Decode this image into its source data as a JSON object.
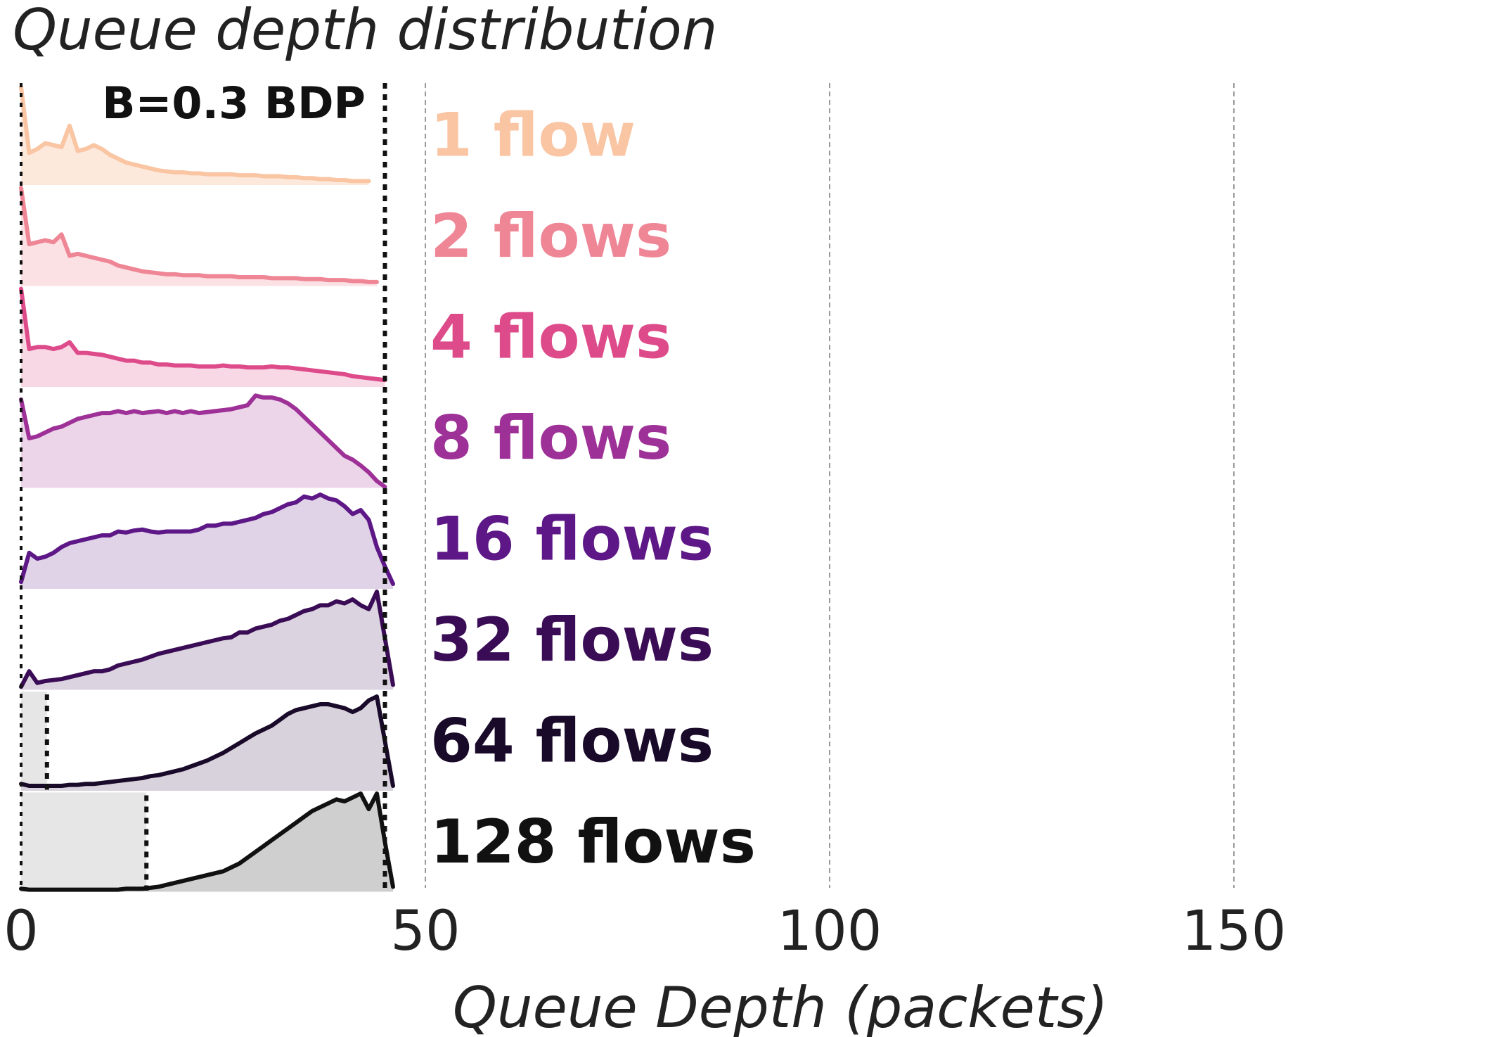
{
  "chart_data": {
    "type": "area",
    "title": "Queue depth distribution",
    "xlabel": "Queue Depth (packets)",
    "ylabel": "",
    "xlim": [
      0,
      185
    ],
    "xticks": [
      "0",
      "50",
      "100",
      "150"
    ],
    "xtick_values": [
      0,
      50,
      100,
      150
    ],
    "grid": "vertical-dashed",
    "annotation": "B=0.3 BDP",
    "buffer_limit": 45,
    "series": [
      {
        "name": "1 flow",
        "color": "#f9c5a3",
        "fill": "#fde9dc",
        "shaded_until": null,
        "x": [
          0,
          1,
          2,
          3,
          4,
          5,
          6,
          7,
          8,
          9,
          10,
          11,
          12,
          13,
          14,
          15,
          16,
          17,
          18,
          19,
          20,
          21,
          22,
          23,
          24,
          25,
          26,
          27,
          28,
          29,
          30,
          31,
          32,
          33,
          34,
          35,
          36,
          37,
          38,
          39,
          40,
          41,
          42,
          43
        ],
        "y": [
          1.0,
          0.32,
          0.36,
          0.42,
          0.4,
          0.38,
          0.6,
          0.34,
          0.36,
          0.4,
          0.36,
          0.3,
          0.26,
          0.22,
          0.2,
          0.18,
          0.16,
          0.14,
          0.13,
          0.12,
          0.12,
          0.11,
          0.11,
          0.1,
          0.1,
          0.1,
          0.1,
          0.09,
          0.09,
          0.09,
          0.08,
          0.08,
          0.08,
          0.07,
          0.07,
          0.06,
          0.06,
          0.05,
          0.05,
          0.04,
          0.04,
          0.03,
          0.03,
          0.03
        ]
      },
      {
        "name": "2 flows",
        "color": "#ef8696",
        "fill": "#fce1e4",
        "shaded_until": null,
        "x": [
          0,
          1,
          2,
          3,
          4,
          5,
          6,
          7,
          8,
          9,
          10,
          11,
          12,
          13,
          14,
          15,
          16,
          17,
          18,
          19,
          20,
          21,
          22,
          23,
          24,
          25,
          26,
          27,
          28,
          29,
          30,
          31,
          32,
          33,
          34,
          35,
          36,
          37,
          38,
          39,
          40,
          41,
          42,
          43,
          44
        ],
        "y": [
          1.0,
          0.42,
          0.44,
          0.46,
          0.44,
          0.52,
          0.3,
          0.32,
          0.3,
          0.28,
          0.26,
          0.24,
          0.2,
          0.18,
          0.16,
          0.14,
          0.13,
          0.12,
          0.11,
          0.11,
          0.1,
          0.1,
          0.1,
          0.09,
          0.09,
          0.09,
          0.09,
          0.08,
          0.08,
          0.08,
          0.08,
          0.07,
          0.07,
          0.07,
          0.07,
          0.06,
          0.06,
          0.06,
          0.05,
          0.05,
          0.05,
          0.04,
          0.04,
          0.03,
          0.03
        ]
      },
      {
        "name": "4 flows",
        "color": "#de4b8b",
        "fill": "#f9d8e6",
        "shaded_until": null,
        "x": [
          0,
          1,
          2,
          3,
          4,
          5,
          6,
          7,
          8,
          9,
          10,
          11,
          12,
          13,
          14,
          15,
          16,
          17,
          18,
          19,
          20,
          21,
          22,
          23,
          24,
          25,
          26,
          27,
          28,
          29,
          30,
          31,
          32,
          33,
          34,
          35,
          36,
          37,
          38,
          39,
          40,
          41,
          42,
          43,
          44,
          45
        ],
        "y": [
          1.0,
          0.38,
          0.4,
          0.4,
          0.38,
          0.4,
          0.45,
          0.34,
          0.34,
          0.33,
          0.32,
          0.3,
          0.28,
          0.26,
          0.26,
          0.24,
          0.24,
          0.22,
          0.22,
          0.21,
          0.21,
          0.21,
          0.2,
          0.2,
          0.2,
          0.21,
          0.2,
          0.2,
          0.19,
          0.19,
          0.19,
          0.2,
          0.19,
          0.19,
          0.18,
          0.17,
          0.16,
          0.15,
          0.14,
          0.13,
          0.12,
          0.1,
          0.09,
          0.08,
          0.07,
          0.06
        ]
      },
      {
        "name": "8 flows",
        "color": "#9e3197",
        "fill": "#ecd5e9",
        "shaded_until": null,
        "x": [
          0,
          1,
          2,
          3,
          4,
          5,
          6,
          7,
          8,
          9,
          10,
          11,
          12,
          13,
          14,
          15,
          16,
          17,
          18,
          19,
          20,
          21,
          22,
          23,
          24,
          25,
          26,
          27,
          28,
          29,
          30,
          31,
          32,
          33,
          34,
          35,
          36,
          37,
          38,
          39,
          40,
          41,
          42,
          43,
          44,
          45
        ],
        "y": [
          0.9,
          0.5,
          0.52,
          0.56,
          0.6,
          0.62,
          0.66,
          0.7,
          0.72,
          0.74,
          0.76,
          0.76,
          0.78,
          0.76,
          0.78,
          0.76,
          0.77,
          0.78,
          0.76,
          0.78,
          0.76,
          0.78,
          0.76,
          0.77,
          0.78,
          0.79,
          0.8,
          0.82,
          0.84,
          0.94,
          0.92,
          0.92,
          0.9,
          0.86,
          0.8,
          0.72,
          0.64,
          0.56,
          0.48,
          0.4,
          0.32,
          0.28,
          0.22,
          0.15,
          0.06,
          0.0
        ]
      },
      {
        "name": "16 flows",
        "color": "#5d1786",
        "fill": "#e0d3e8",
        "shaded_until": null,
        "x": [
          0,
          1,
          2,
          3,
          4,
          5,
          6,
          7,
          8,
          9,
          10,
          11,
          12,
          13,
          14,
          15,
          16,
          17,
          18,
          19,
          20,
          21,
          22,
          23,
          24,
          25,
          26,
          27,
          28,
          29,
          30,
          31,
          32,
          33,
          34,
          35,
          36,
          37,
          38,
          39,
          40,
          41,
          42,
          43,
          44,
          45,
          46
        ],
        "y": [
          0.06,
          0.36,
          0.3,
          0.32,
          0.36,
          0.42,
          0.46,
          0.48,
          0.5,
          0.52,
          0.54,
          0.54,
          0.58,
          0.57,
          0.59,
          0.6,
          0.58,
          0.57,
          0.58,
          0.58,
          0.58,
          0.58,
          0.6,
          0.64,
          0.64,
          0.66,
          0.66,
          0.68,
          0.7,
          0.72,
          0.76,
          0.78,
          0.82,
          0.86,
          0.88,
          0.94,
          0.92,
          0.96,
          0.92,
          0.9,
          0.84,
          0.76,
          0.8,
          0.7,
          0.42,
          0.22,
          0.04
        ]
      },
      {
        "name": "32 flows",
        "color": "#3a0c55",
        "fill": "#dbd3e0",
        "shaded_until": null,
        "x": [
          0,
          1,
          2,
          3,
          4,
          5,
          6,
          7,
          8,
          9,
          10,
          11,
          12,
          13,
          14,
          15,
          16,
          17,
          18,
          19,
          20,
          21,
          22,
          23,
          24,
          25,
          26,
          27,
          28,
          29,
          30,
          31,
          32,
          33,
          34,
          35,
          36,
          37,
          38,
          39,
          40,
          41,
          42,
          43,
          44,
          45,
          46
        ],
        "y": [
          0.02,
          0.18,
          0.06,
          0.08,
          0.09,
          0.1,
          0.12,
          0.14,
          0.16,
          0.18,
          0.18,
          0.2,
          0.24,
          0.26,
          0.28,
          0.3,
          0.33,
          0.36,
          0.38,
          0.4,
          0.42,
          0.44,
          0.46,
          0.48,
          0.5,
          0.52,
          0.53,
          0.58,
          0.58,
          0.62,
          0.64,
          0.66,
          0.7,
          0.72,
          0.76,
          0.8,
          0.82,
          0.86,
          0.86,
          0.9,
          0.88,
          0.92,
          0.86,
          0.82,
          1.0,
          0.52,
          0.04
        ]
      },
      {
        "name": "64 flows",
        "color": "#1a0a2a",
        "fill": "#d8d2dc",
        "shaded_until": 3.2,
        "x": [
          0,
          1,
          2,
          3,
          4,
          5,
          6,
          7,
          8,
          9,
          10,
          11,
          12,
          13,
          14,
          15,
          16,
          17,
          18,
          19,
          20,
          21,
          22,
          23,
          24,
          25,
          26,
          27,
          28,
          29,
          30,
          31,
          32,
          33,
          34,
          35,
          36,
          37,
          38,
          39,
          40,
          41,
          42,
          43,
          44,
          45,
          46
        ],
        "y": [
          0.06,
          0.04,
          0.04,
          0.04,
          0.04,
          0.04,
          0.05,
          0.05,
          0.06,
          0.06,
          0.07,
          0.08,
          0.09,
          0.1,
          0.11,
          0.12,
          0.14,
          0.15,
          0.17,
          0.19,
          0.21,
          0.24,
          0.27,
          0.3,
          0.34,
          0.38,
          0.43,
          0.48,
          0.53,
          0.58,
          0.62,
          0.66,
          0.72,
          0.78,
          0.82,
          0.84,
          0.86,
          0.88,
          0.88,
          0.86,
          0.84,
          0.8,
          0.84,
          0.92,
          0.96,
          0.5,
          0.04
        ]
      },
      {
        "name": "128 flows",
        "color": "#111111",
        "fill": "#cfcfcf",
        "shaded_until": 15.5,
        "x": [
          0,
          1,
          2,
          3,
          4,
          5,
          6,
          7,
          8,
          9,
          10,
          11,
          12,
          13,
          14,
          15,
          16,
          17,
          18,
          19,
          20,
          21,
          22,
          23,
          24,
          25,
          26,
          27,
          28,
          29,
          30,
          31,
          32,
          33,
          34,
          35,
          36,
          37,
          38,
          39,
          40,
          41,
          42,
          43,
          44,
          45,
          46
        ],
        "y": [
          0.02,
          0.01,
          0.01,
          0.01,
          0.01,
          0.01,
          0.01,
          0.01,
          0.01,
          0.01,
          0.01,
          0.01,
          0.01,
          0.02,
          0.02,
          0.02,
          0.03,
          0.04,
          0.06,
          0.08,
          0.1,
          0.12,
          0.14,
          0.16,
          0.18,
          0.2,
          0.24,
          0.28,
          0.34,
          0.4,
          0.46,
          0.52,
          0.58,
          0.64,
          0.7,
          0.76,
          0.82,
          0.86,
          0.9,
          0.94,
          0.92,
          0.96,
          1.0,
          0.84,
          1.0,
          0.5,
          0.04
        ]
      }
    ]
  }
}
